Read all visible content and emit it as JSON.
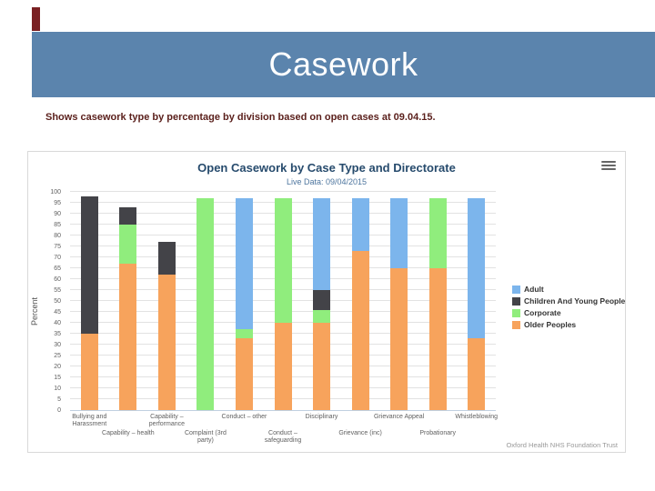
{
  "slide": {
    "title": "Casework",
    "subtitle": "Shows casework type by percentage by division based on open cases at 09.04.15.",
    "banner_color": "#5b84ad",
    "accent_color": "#7a2023",
    "subtitle_color": "#5a1f1b"
  },
  "chart": {
    "title": "Open Casework by Case Type and Directorate",
    "subtitle": "Live Data: 09/04/2015",
    "credits": "Oxford Health NHS Foundation Trust",
    "menu_icon": "hamburger-icon"
  },
  "chart_data": {
    "type": "bar",
    "stacked": true,
    "title": "Open Casework by Case Type and Directorate",
    "subtitle": "Live Data: 09/04/2015",
    "xlabel": "",
    "ylabel": "Percent",
    "ylim": [
      0,
      100
    ],
    "ytick_interval": 5,
    "grid": true,
    "legend_position": "right",
    "stack_order_bottom_to_top": [
      "Older Peoples",
      "Corporate",
      "Children And Young People",
      "Adult"
    ],
    "categories": [
      "Bullying and Harassment",
      "Capability – health",
      "Capability – performance",
      "Complaint (3rd party)",
      "Conduct – other",
      "Conduct – safeguarding",
      "Disciplinary",
      "Grievance (inc)",
      "Grievance Appeal",
      "Probationary",
      "Whistleblowing"
    ],
    "series": [
      {
        "name": "Adult",
        "color": "#7cb5ec",
        "values": [
          0,
          0,
          0,
          0,
          60,
          0,
          42,
          24,
          32,
          0,
          64
        ]
      },
      {
        "name": "Children And Young People",
        "color": "#434348",
        "values": [
          63,
          8,
          15,
          0,
          0,
          0,
          9,
          0,
          0,
          0,
          0
        ]
      },
      {
        "name": "Corporate",
        "color": "#90ed7d",
        "values": [
          0,
          18,
          0,
          97,
          4,
          57,
          6,
          0,
          0,
          32,
          0
        ]
      },
      {
        "name": "Older Peoples",
        "color": "#f7a35c",
        "values": [
          35,
          67,
          62,
          0,
          33,
          40,
          40,
          73,
          65,
          65,
          33
        ]
      }
    ]
  }
}
